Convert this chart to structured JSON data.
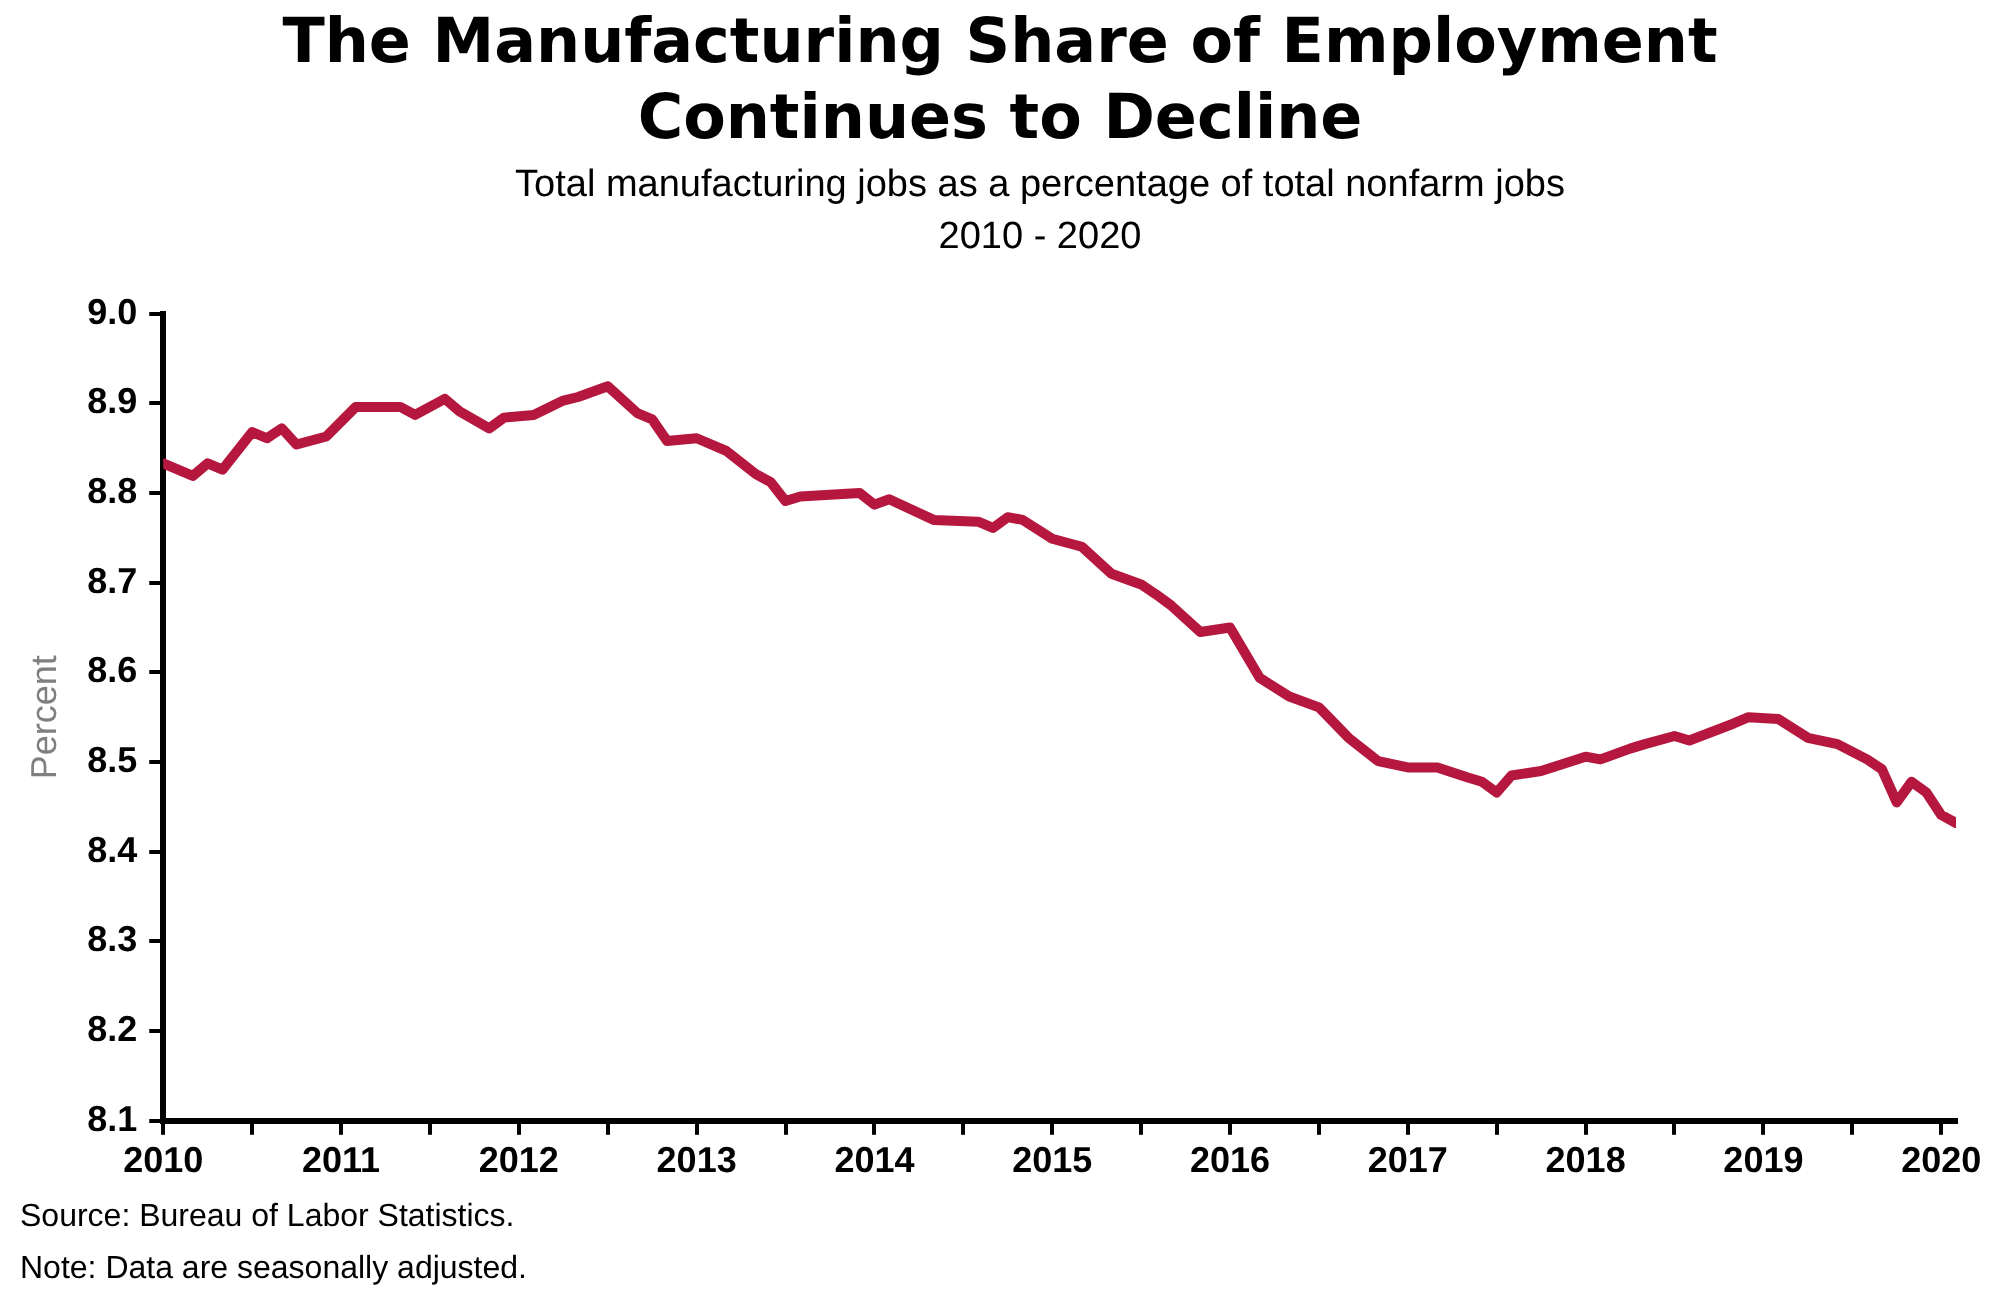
{
  "chart_data": {
    "type": "line",
    "title": "The Manufacturing Share of Employment\nContinues to Decline",
    "subtitle": "Total manufacturing jobs as a percentage of total nonfarm jobs\n2010 - 2020",
    "ylabel": "Percent",
    "x": [
      "2010-01",
      "2010-03",
      "2010-04",
      "2010-05",
      "2010-07",
      "2010-08",
      "2010-09",
      "2010-10",
      "2010-12",
      "2011-02",
      "2011-05",
      "2011-06",
      "2011-08",
      "2011-09",
      "2011-11",
      "2011-12",
      "2012-02",
      "2012-04",
      "2012-05",
      "2012-07",
      "2012-09",
      "2012-10",
      "2012-11",
      "2013-01",
      "2013-03",
      "2013-05",
      "2013-06",
      "2013-07",
      "2013-08",
      "2013-12",
      "2014-01",
      "2014-02",
      "2014-05",
      "2014-08",
      "2014-09",
      "2014-10",
      "2014-11",
      "2015-01",
      "2015-03",
      "2015-05",
      "2015-07",
      "2015-08",
      "2015-09",
      "2015-11",
      "2016-01",
      "2016-03",
      "2016-05",
      "2016-07",
      "2016-09",
      "2016-11",
      "2017-01",
      "2017-03",
      "2017-05",
      "2017-06",
      "2017-07",
      "2017-08",
      "2017-10",
      "2018-01",
      "2018-02",
      "2018-04",
      "2018-05",
      "2018-07",
      "2018-08",
      "2018-11",
      "2018-12",
      "2019-02",
      "2019-04",
      "2019-06",
      "2019-08",
      "2019-09",
      "2019-10",
      "2019-11",
      "2019-12",
      "2020-01",
      "2020-02"
    ],
    "series": [
      {
        "color": "#b5173f",
        "values": [
          8.833,
          8.819,
          8.833,
          8.826,
          8.868,
          8.861,
          8.872,
          8.854,
          8.863,
          8.896,
          8.896,
          8.887,
          8.905,
          8.891,
          8.872,
          8.884,
          8.887,
          8.903,
          8.907,
          8.919,
          8.889,
          8.882,
          8.858,
          8.861,
          8.847,
          8.821,
          8.812,
          8.791,
          8.796,
          8.8,
          8.787,
          8.793,
          8.77,
          8.768,
          8.761,
          8.773,
          8.77,
          8.749,
          8.74,
          8.71,
          8.698,
          8.687,
          8.675,
          8.645,
          8.65,
          8.594,
          8.573,
          8.561,
          8.527,
          8.501,
          8.494,
          8.494,
          8.483,
          8.478,
          8.466,
          8.485,
          8.49,
          8.506,
          8.503,
          8.515,
          8.52,
          8.529,
          8.524,
          8.543,
          8.55,
          8.548,
          8.527,
          8.52,
          8.503,
          8.492,
          8.455,
          8.478,
          8.466,
          8.441,
          8.432
        ]
      }
    ],
    "xlim": [
      "2010-01",
      "2020-02"
    ],
    "xticks": [
      "2010",
      {
        "value": "2010-07",
        "label": null
      },
      "2011",
      {
        "value": "2011-07",
        "label": null
      },
      "2012",
      {
        "value": "2012-07",
        "label": null
      },
      "2013",
      {
        "value": "2013-07",
        "label": null
      },
      "2014",
      {
        "value": "2014-07",
        "label": null
      },
      "2015",
      {
        "value": "2015-07",
        "label": null
      },
      "2016",
      {
        "value": "2016-07",
        "label": null
      },
      "2017",
      {
        "value": "2017-07",
        "label": null
      },
      "2018",
      {
        "value": "2018-07",
        "label": null
      },
      "2019",
      {
        "value": "2019-07",
        "label": null
      },
      "2020"
    ],
    "ylim": [
      8.1,
      9.0
    ],
    "yticks": [
      8.1,
      8.2,
      8.3,
      8.4,
      8.5,
      8.6,
      8.7,
      8.8,
      8.9,
      {
        "value": 9.0,
        "label": "9.0"
      }
    ],
    "grid": false,
    "legend": false,
    "marker": "none",
    "line_style": "solid",
    "annotations": [
      "Source: Bureau of Labor Statistics.",
      "Note: Data are seasonally adjusted."
    ]
  }
}
